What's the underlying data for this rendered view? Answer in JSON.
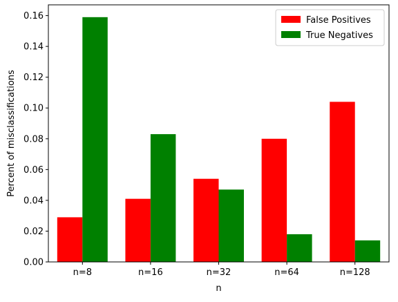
{
  "chart_data": {
    "type": "bar",
    "title": "",
    "xlabel": "n",
    "ylabel": "Percent of misclassifications",
    "categories": [
      "n=8",
      "n=16",
      "n=32",
      "n=64",
      "n=128"
    ],
    "series": [
      {
        "name": "False Positives",
        "color": "#ff0000",
        "values": [
          0.029,
          0.041,
          0.054,
          0.08,
          0.104
        ]
      },
      {
        "name": "True Negatives",
        "color": "#008000",
        "values": [
          0.159,
          0.083,
          0.047,
          0.018,
          0.014
        ]
      }
    ],
    "ylim": [
      0,
      0.167
    ],
    "yticks": [
      0.0,
      0.02,
      0.04,
      0.06,
      0.08,
      0.1,
      0.12,
      0.14,
      0.16
    ],
    "ytick_labels": [
      "0.00",
      "0.02",
      "0.04",
      "0.06",
      "0.08",
      "0.10",
      "0.12",
      "0.14",
      "0.16"
    ],
    "grid": false,
    "legend_position": "top-right"
  }
}
